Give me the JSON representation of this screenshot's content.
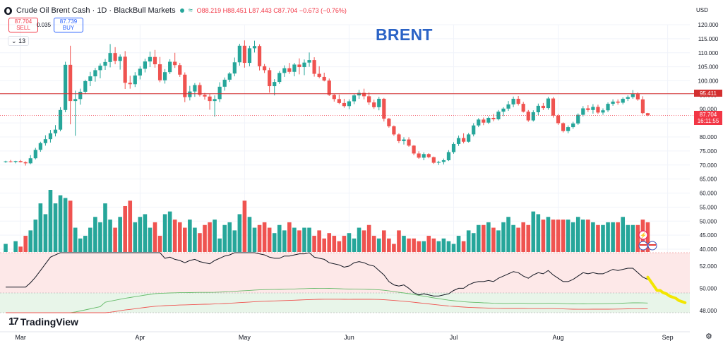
{
  "header": {
    "title": "Crude Oil Brent Cash · 1D · BlackBull Markets",
    "open": "O88.219",
    "high": "H88.451",
    "low": "L87.443",
    "close": "C87.704",
    "change": "−0.673 (−0.76%)"
  },
  "trade": {
    "sell_price": "87.704",
    "sell_label": "SELL",
    "buy_price": "87.739",
    "buy_label": "BUY",
    "spread": "0.035"
  },
  "indicator_count": "13",
  "annotation": "BRENT",
  "currency": "USD",
  "brand": "TradingView",
  "chart_data": {
    "type": "candlestick",
    "price_axis": {
      "ticks": [
        "120.000",
        "115.000",
        "110.000",
        "105.000",
        "100.000",
        "95.000",
        "90.000",
        "85.000",
        "80.000",
        "75.000",
        "70.000",
        "65.000",
        "60.000",
        "55.000",
        "50.000",
        "45.000",
        "40.000"
      ],
      "ylim": [
        40,
        120
      ]
    },
    "resistance_level": {
      "value": 95.411,
      "label": "95.411",
      "color": "#d32f2f"
    },
    "last_price": {
      "value": 87.704,
      "label": "87.704",
      "countdown": "16:11:55",
      "color": "#f23645"
    },
    "x_axis": {
      "labels": [
        "Mar",
        "Apr",
        "May",
        "Jun",
        "Jul",
        "Aug",
        "Sep"
      ]
    },
    "candles": [
      [
        71.2,
        71.5,
        70.8,
        71.3
      ],
      [
        71.3,
        71.8,
        70.9,
        71.1
      ],
      [
        71.1,
        71.5,
        70.6,
        71.4
      ],
      [
        71.4,
        71.8,
        70.9,
        71.0
      ],
      [
        71.0,
        71.3,
        69.8,
        70.6
      ],
      [
        70.6,
        73.5,
        70.3,
        72.4
      ],
      [
        72.4,
        76.1,
        72.0,
        75.4
      ],
      [
        75.4,
        78.3,
        74.7,
        77.8
      ],
      [
        77.8,
        80.6,
        76.9,
        79.2
      ],
      [
        79.2,
        82.5,
        78.0,
        81.3
      ],
      [
        81.3,
        84.2,
        80.2,
        82.6
      ],
      [
        82.6,
        90.6,
        82.0,
        89.6
      ],
      [
        89.6,
        106.8,
        88.8,
        105.7
      ],
      [
        105.7,
        112.5,
        84.5,
        92.8
      ],
      [
        92.8,
        96.5,
        80.4,
        93.5
      ],
      [
        93.5,
        97.2,
        91.5,
        96.1
      ],
      [
        96.1,
        100.4,
        95.3,
        99.9
      ],
      [
        99.9,
        103.2,
        98.1,
        101.6
      ],
      [
        101.6,
        104.6,
        99.7,
        103.8
      ],
      [
        103.8,
        106.2,
        100.9,
        105.4
      ],
      [
        105.4,
        107.8,
        103.9,
        106.7
      ],
      [
        106.7,
        113.1,
        104.8,
        109.9
      ],
      [
        109.9,
        112.0,
        105.9,
        107.1
      ],
      [
        107.1,
        109.4,
        104.0,
        108.6
      ],
      [
        108.6,
        110.6,
        97.1,
        99.3
      ],
      [
        99.3,
        101.8,
        97.2,
        98.8
      ],
      [
        98.8,
        103.1,
        97.8,
        101.9
      ],
      [
        101.9,
        105.2,
        100.5,
        104.3
      ],
      [
        104.3,
        107.9,
        103.0,
        106.9
      ],
      [
        106.9,
        110.4,
        104.9,
        108.5
      ],
      [
        108.5,
        111.0,
        104.7,
        105.9
      ],
      [
        105.9,
        108.5,
        99.5,
        100.2
      ],
      [
        100.2,
        104.2,
        99.0,
        103.1
      ],
      [
        103.1,
        107.7,
        102.4,
        106.8
      ],
      [
        106.8,
        110.0,
        104.6,
        105.6
      ],
      [
        105.6,
        106.4,
        101.4,
        102.2
      ],
      [
        102.2,
        103.0,
        92.4,
        94.2
      ],
      [
        94.2,
        98.2,
        93.0,
        96.2
      ],
      [
        96.2,
        99.2,
        94.3,
        98.5
      ],
      [
        98.5,
        99.4,
        94.4,
        95.0
      ],
      [
        95.0,
        95.7,
        93.3,
        94.4
      ],
      [
        94.4,
        95.4,
        89.7,
        92.8
      ],
      [
        92.8,
        94.8,
        87.2,
        93.5
      ],
      [
        93.5,
        99.5,
        92.4,
        97.9
      ],
      [
        97.9,
        101.2,
        96.5,
        100.4
      ],
      [
        100.4,
        103.1,
        99.6,
        102.6
      ],
      [
        102.6,
        108.3,
        101.6,
        106.6
      ],
      [
        106.6,
        113.2,
        105.4,
        112.5
      ],
      [
        112.5,
        114.4,
        104.7,
        106.4
      ],
      [
        106.4,
        112.5,
        105.2,
        111.6
      ],
      [
        111.6,
        114.3,
        110.1,
        112.4
      ],
      [
        112.4,
        113.0,
        103.7,
        105.2
      ],
      [
        105.2,
        106.0,
        102.8,
        103.8
      ],
      [
        103.8,
        104.7,
        95.8,
        98.1
      ],
      [
        98.1,
        100.6,
        94.8,
        99.6
      ],
      [
        99.6,
        103.5,
        98.9,
        102.8
      ],
      [
        102.8,
        105.5,
        101.4,
        104.5
      ],
      [
        104.5,
        106.4,
        102.5,
        103.2
      ],
      [
        103.2,
        106.4,
        101.6,
        105.8
      ],
      [
        105.8,
        108.0,
        102.3,
        104.9
      ],
      [
        104.9,
        107.6,
        102.0,
        106.5
      ],
      [
        106.5,
        110.1,
        105.0,
        107.4
      ],
      [
        107.4,
        108.4,
        101.5,
        102.5
      ],
      [
        102.5,
        105.2,
        100.9,
        101.4
      ],
      [
        101.4,
        102.9,
        99.8,
        100.1
      ],
      [
        100.1,
        100.8,
        94.6,
        95.0
      ],
      [
        95.0,
        95.3,
        92.6,
        93.5
      ],
      [
        93.5,
        95.1,
        91.7,
        92.1
      ],
      [
        92.1,
        93.6,
        90.4,
        91.0
      ],
      [
        91.0,
        93.4,
        89.9,
        92.7
      ],
      [
        92.7,
        95.4,
        91.7,
        94.8
      ],
      [
        94.8,
        96.8,
        93.6,
        95.7
      ],
      [
        95.7,
        97.2,
        93.4,
        94.5
      ],
      [
        94.5,
        95.9,
        91.4,
        92.3
      ],
      [
        92.3,
        93.3,
        90.0,
        90.6
      ],
      [
        90.6,
        94.3,
        89.5,
        93.6
      ],
      [
        93.6,
        93.9,
        85.5,
        86.5
      ],
      [
        86.5,
        86.8,
        83.3,
        83.8
      ],
      [
        83.8,
        84.1,
        80.4,
        80.9
      ],
      [
        80.9,
        81.3,
        77.8,
        78.5
      ],
      [
        78.5,
        79.9,
        77.3,
        79.1
      ],
      [
        79.1,
        79.9,
        76.5,
        76.9
      ],
      [
        76.9,
        77.1,
        73.5,
        74.1
      ],
      [
        74.1,
        74.9,
        72.2,
        72.6
      ],
      [
        72.6,
        74.5,
        71.7,
        73.9
      ],
      [
        73.9,
        74.2,
        72.4,
        72.8
      ],
      [
        72.8,
        73.0,
        70.4,
        70.8
      ],
      [
        70.8,
        71.5,
        70.0,
        71.1
      ],
      [
        71.1,
        72.3,
        70.2,
        71.7
      ],
      [
        71.7,
        75.3,
        71.4,
        74.6
      ],
      [
        74.6,
        78.1,
        74.0,
        77.5
      ],
      [
        77.5,
        80.5,
        76.8,
        79.6
      ],
      [
        79.6,
        81.3,
        77.7,
        78.3
      ],
      [
        78.3,
        81.4,
        78.0,
        80.9
      ],
      [
        80.9,
        84.9,
        80.2,
        84.1
      ],
      [
        84.1,
        86.7,
        83.5,
        86.2
      ],
      [
        86.2,
        86.9,
        84.2,
        85.1
      ],
      [
        85.1,
        87.3,
        84.6,
        86.8
      ],
      [
        86.8,
        88.2,
        85.6,
        86.3
      ],
      [
        86.3,
        89.6,
        85.9,
        89.0
      ],
      [
        89.0,
        90.6,
        87.4,
        90.1
      ],
      [
        90.1,
        92.8,
        89.3,
        91.6
      ],
      [
        91.6,
        94.4,
        90.6,
        93.6
      ],
      [
        93.6,
        94.6,
        91.2,
        91.8
      ],
      [
        91.8,
        92.5,
        88.7,
        89.0
      ],
      [
        89.0,
        89.6,
        85.4,
        85.9
      ],
      [
        85.9,
        89.5,
        85.5,
        88.8
      ],
      [
        88.8,
        91.9,
        87.8,
        91.1
      ],
      [
        91.1,
        92.1,
        89.6,
        90.3
      ],
      [
        90.3,
        94.3,
        89.7,
        93.7
      ],
      [
        93.7,
        94.2,
        86.9,
        87.6
      ],
      [
        87.6,
        88.2,
        84.3,
        84.9
      ],
      [
        84.9,
        85.2,
        81.6,
        82.1
      ],
      [
        82.1,
        84.1,
        81.3,
        83.5
      ],
      [
        83.5,
        85.4,
        82.9,
        84.8
      ],
      [
        84.8,
        88.4,
        84.3,
        87.9
      ],
      [
        87.9,
        91.0,
        87.3,
        90.2
      ],
      [
        90.2,
        91.3,
        88.9,
        89.6
      ],
      [
        89.6,
        91.7,
        88.3,
        90.7
      ],
      [
        90.7,
        91.5,
        88.2,
        88.7
      ],
      [
        88.7,
        90.2,
        87.9,
        89.5
      ],
      [
        89.5,
        92.3,
        88.9,
        91.8
      ],
      [
        91.8,
        93.4,
        91.1,
        92.6
      ],
      [
        92.6,
        93.4,
        91.5,
        92.2
      ],
      [
        92.2,
        94.1,
        91.6,
        93.6
      ],
      [
        93.6,
        94.8,
        92.8,
        94.2
      ],
      [
        94.2,
        96.7,
        93.6,
        95.3
      ],
      [
        95.3,
        95.9,
        92.9,
        93.4
      ],
      [
        93.4,
        94.5,
        88.0,
        88.5
      ],
      [
        88.5,
        88.6,
        87.4,
        87.7
      ]
    ],
    "volume": [
      41,
      38,
      42,
      40,
      44,
      46,
      50,
      56,
      52,
      61,
      56,
      59,
      58,
      57,
      47,
      43,
      44,
      47,
      51,
      49,
      56,
      50,
      47,
      51,
      55,
      57,
      49,
      51,
      52,
      47,
      49,
      44,
      52,
      53,
      50,
      49,
      47,
      50,
      47,
      45,
      48,
      49,
      50,
      43,
      48,
      49,
      46,
      52,
      57,
      51,
      47,
      48,
      49,
      47,
      45,
      48,
      46,
      49,
      47,
      46,
      47,
      47,
      44,
      46,
      43,
      45,
      44,
      42,
      44,
      45,
      43,
      47,
      46,
      48,
      44,
      43,
      46,
      43,
      41,
      46,
      44,
      43,
      43,
      42,
      42,
      44,
      43,
      42,
      43,
      42,
      41,
      44,
      42,
      46,
      45,
      48,
      48,
      49,
      47,
      46,
      49,
      51,
      48,
      47,
      49,
      48,
      53,
      52,
      50,
      51,
      50,
      50,
      50,
      50,
      49,
      51,
      50,
      50,
      49,
      48,
      48,
      49,
      49,
      49,
      51,
      48,
      48,
      48,
      50,
      49
    ],
    "oscillator": {
      "bands": {
        "upper": 52.0,
        "lower": 50.0
      },
      "axis": {
        "ticks": [
          "52.000",
          "50.000",
          "48.000"
        ],
        "ylim": [
          47.8,
          53.2
        ]
      },
      "main": [
        50.1,
        50.1,
        50.1,
        50.1,
        50.1,
        50.5,
        51.0,
        51.6,
        52.2,
        52.8,
        53.0,
        53.4,
        54.0,
        53.5,
        53.6,
        53.8,
        54.0,
        54.2,
        54.4,
        54.2,
        54.4,
        54.5,
        54.4,
        54.6,
        54.4,
        54.0,
        54.2,
        54.3,
        54.4,
        54.1,
        54.0,
        53.2,
        52.7,
        52.8,
        52.6,
        52.5,
        52.3,
        52.5,
        52.6,
        52.4,
        52.3,
        52.2,
        52.5,
        52.7,
        52.9,
        53.0,
        53.3,
        53.4,
        53.2,
        53.3,
        53.4,
        53.1,
        53.0,
        52.8,
        52.7,
        52.7,
        52.9,
        52.9,
        53.0,
        53.1,
        53.1,
        53.2,
        52.8,
        52.7,
        52.6,
        52.3,
        52.2,
        52.1,
        51.9,
        52.0,
        52.3,
        52.4,
        52.3,
        52.1,
        52.0,
        51.6,
        51.2,
        50.6,
        50.3,
        50.2,
        50.3,
        50.0,
        49.6,
        49.4,
        49.5,
        49.4,
        49.3,
        49.3,
        49.4,
        49.5,
        49.8,
        50.0,
        50.0,
        50.3,
        50.5,
        50.6,
        50.6,
        50.7,
        50.6,
        50.9,
        51.1,
        51.3,
        51.5,
        51.4,
        51.1,
        50.9,
        51.2,
        51.4,
        51.3,
        51.6,
        51.2,
        50.9,
        50.6,
        50.6,
        50.8,
        51.1,
        51.4,
        51.3,
        51.4,
        51.3,
        51.3,
        51.5,
        51.7,
        51.6,
        51.7,
        51.8,
        51.8,
        51.4,
        51.0,
        50.8
      ],
      "projection": [
        51.0,
        50.6,
        50.2,
        49.8,
        49.8,
        49.6,
        49.5,
        49.3,
        49.2,
        49.1,
        48.9,
        48.8,
        48.7
      ],
      "slow_line": {
        "color": "#66bb6a"
      },
      "signal_line": {
        "color": "#ef5350"
      }
    },
    "colors": {
      "up": "#26a69a",
      "down": "#ef5350",
      "resistance": "#d32f2f",
      "oscillator": "#131722",
      "projection": "#f2e600"
    }
  }
}
